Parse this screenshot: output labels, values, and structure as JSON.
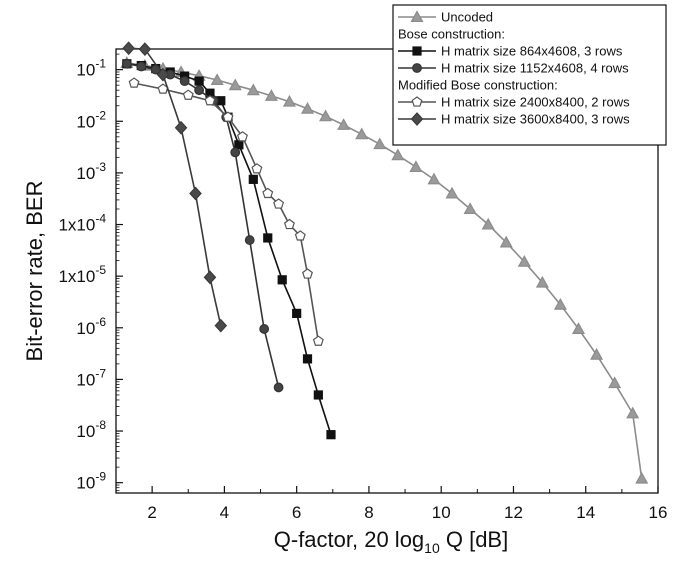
{
  "chart_data": {
    "type": "line",
    "xlabel": {
      "main": "Q-factor, 20 log",
      "sub": "10",
      "tail": " Q [dB]"
    },
    "ylabel": "Bit-error rate, BER",
    "xlim": [
      1,
      16
    ],
    "ylim_log10": [
      -9.2,
      -0.6
    ],
    "y_scale": "log",
    "x_ticks": [
      2,
      4,
      6,
      8,
      10,
      12,
      14,
      16
    ],
    "y_ticks": [
      {
        "exp": -1,
        "label": "10",
        "sup": "-1"
      },
      {
        "exp": -2,
        "label": "10",
        "sup": "-2"
      },
      {
        "exp": -3,
        "label": "10",
        "sup": "-3"
      },
      {
        "exp": -4,
        "label": "1x10",
        "sup": "-4"
      },
      {
        "exp": -5,
        "label": "1x10",
        "sup": "-5"
      },
      {
        "exp": -6,
        "label": "10",
        "sup": "-6"
      },
      {
        "exp": -7,
        "label": "10",
        "sup": "-7"
      },
      {
        "exp": -8,
        "label": "10",
        "sup": "-8"
      },
      {
        "exp": -9,
        "label": "10",
        "sup": "-9"
      }
    ],
    "grid": false,
    "legend_position": "top-right",
    "legend_groups": [
      {
        "header": "",
        "series": [
          0
        ]
      },
      {
        "header": "Bose construction:",
        "series": [
          1,
          2
        ]
      },
      {
        "header": "Modified Bose construction:",
        "series": [
          3,
          4
        ]
      }
    ],
    "series": [
      {
        "name": "Uncoded",
        "marker": "triangle",
        "color": "#8c8c8c",
        "fill": "#9a9a9a",
        "points": [
          [
            1.3,
            0.135
          ],
          [
            1.8,
            0.12
          ],
          [
            2.3,
            0.105
          ],
          [
            2.8,
            0.09
          ],
          [
            3.3,
            0.076
          ],
          [
            3.8,
            0.063
          ],
          [
            4.3,
            0.05
          ],
          [
            4.8,
            0.04
          ],
          [
            5.3,
            0.031
          ],
          [
            5.8,
            0.024
          ],
          [
            6.3,
            0.0175
          ],
          [
            6.8,
            0.0125
          ],
          [
            7.3,
            0.0085
          ],
          [
            7.8,
            0.0056
          ],
          [
            8.3,
            0.0036
          ],
          [
            8.8,
            0.0022
          ],
          [
            9.3,
            0.0013
          ],
          [
            9.8,
            0.00075
          ],
          [
            10.3,
            0.0004
          ],
          [
            10.8,
            0.0002
          ],
          [
            11.3,
            0.0001
          ],
          [
            11.8,
            4.5e-05
          ],
          [
            12.3,
            1.9e-05
          ],
          [
            12.8,
            7.5e-06
          ],
          [
            13.3,
            2.8e-06
          ],
          [
            13.8,
            9.5e-07
          ],
          [
            14.3,
            3e-07
          ],
          [
            14.8,
            8.5e-08
          ],
          [
            15.3,
            2.2e-08
          ],
          [
            15.55,
            1.2e-09
          ]
        ]
      },
      {
        "name": "H matrix size 864x4608, 3 rows",
        "marker": "square",
        "color": "#111111",
        "fill": "#111111",
        "points": [
          [
            1.3,
            0.13
          ],
          [
            1.7,
            0.12
          ],
          [
            2.1,
            0.105
          ],
          [
            2.5,
            0.09
          ],
          [
            2.9,
            0.075
          ],
          [
            3.3,
            0.06
          ],
          [
            3.6,
            0.035
          ],
          [
            3.9,
            0.025
          ],
          [
            4.1,
            0.012
          ],
          [
            4.4,
            0.0035
          ],
          [
            4.8,
            0.00075
          ],
          [
            5.2,
            5.5e-05
          ],
          [
            5.6,
            8.5e-06
          ],
          [
            6.0,
            1.9e-06
          ],
          [
            6.3,
            2.5e-07
          ],
          [
            6.6,
            5e-08
          ],
          [
            6.95,
            8.5e-09
          ]
        ]
      },
      {
        "name": "H matrix size 1152x4608, 4 rows",
        "marker": "circle",
        "color": "#333333",
        "fill": "#444444",
        "points": [
          [
            1.3,
            0.13
          ],
          [
            1.7,
            0.115
          ],
          [
            2.1,
            0.1
          ],
          [
            2.5,
            0.08
          ],
          [
            2.9,
            0.06
          ],
          [
            3.3,
            0.04
          ],
          [
            3.7,
            0.025
          ],
          [
            4.05,
            0.012
          ],
          [
            4.3,
            0.0025
          ],
          [
            4.7,
            5e-05
          ],
          [
            5.1,
            9.5e-07
          ],
          [
            5.5,
            7e-08
          ]
        ]
      },
      {
        "name": "H matrix size 2400x8400, 2 rows",
        "marker": "pentagon",
        "color": "#555555",
        "fill": "#ffffff",
        "points": [
          [
            1.5,
            0.055
          ],
          [
            2.3,
            0.042
          ],
          [
            3.0,
            0.032
          ],
          [
            3.6,
            0.025
          ],
          [
            4.1,
            0.012
          ],
          [
            4.5,
            0.005
          ],
          [
            4.9,
            0.0012
          ],
          [
            5.2,
            0.0004
          ],
          [
            5.5,
            0.00025
          ],
          [
            5.8,
            0.0001
          ],
          [
            6.1,
            6e-05
          ],
          [
            6.3,
            1.1e-05
          ],
          [
            6.6,
            5.5e-07
          ]
        ]
      },
      {
        "name": "H matrix size 3600x8400, 3 rows",
        "marker": "diamond",
        "color": "#3a3a3a",
        "fill": "#4a4a4a",
        "points": [
          [
            1.35,
            0.26
          ],
          [
            1.8,
            0.25
          ],
          [
            2.3,
            0.08
          ],
          [
            2.8,
            0.0075
          ],
          [
            3.2,
            0.0004
          ],
          [
            3.6,
            9.5e-06
          ],
          [
            3.9,
            1.1e-06
          ]
        ]
      }
    ]
  }
}
